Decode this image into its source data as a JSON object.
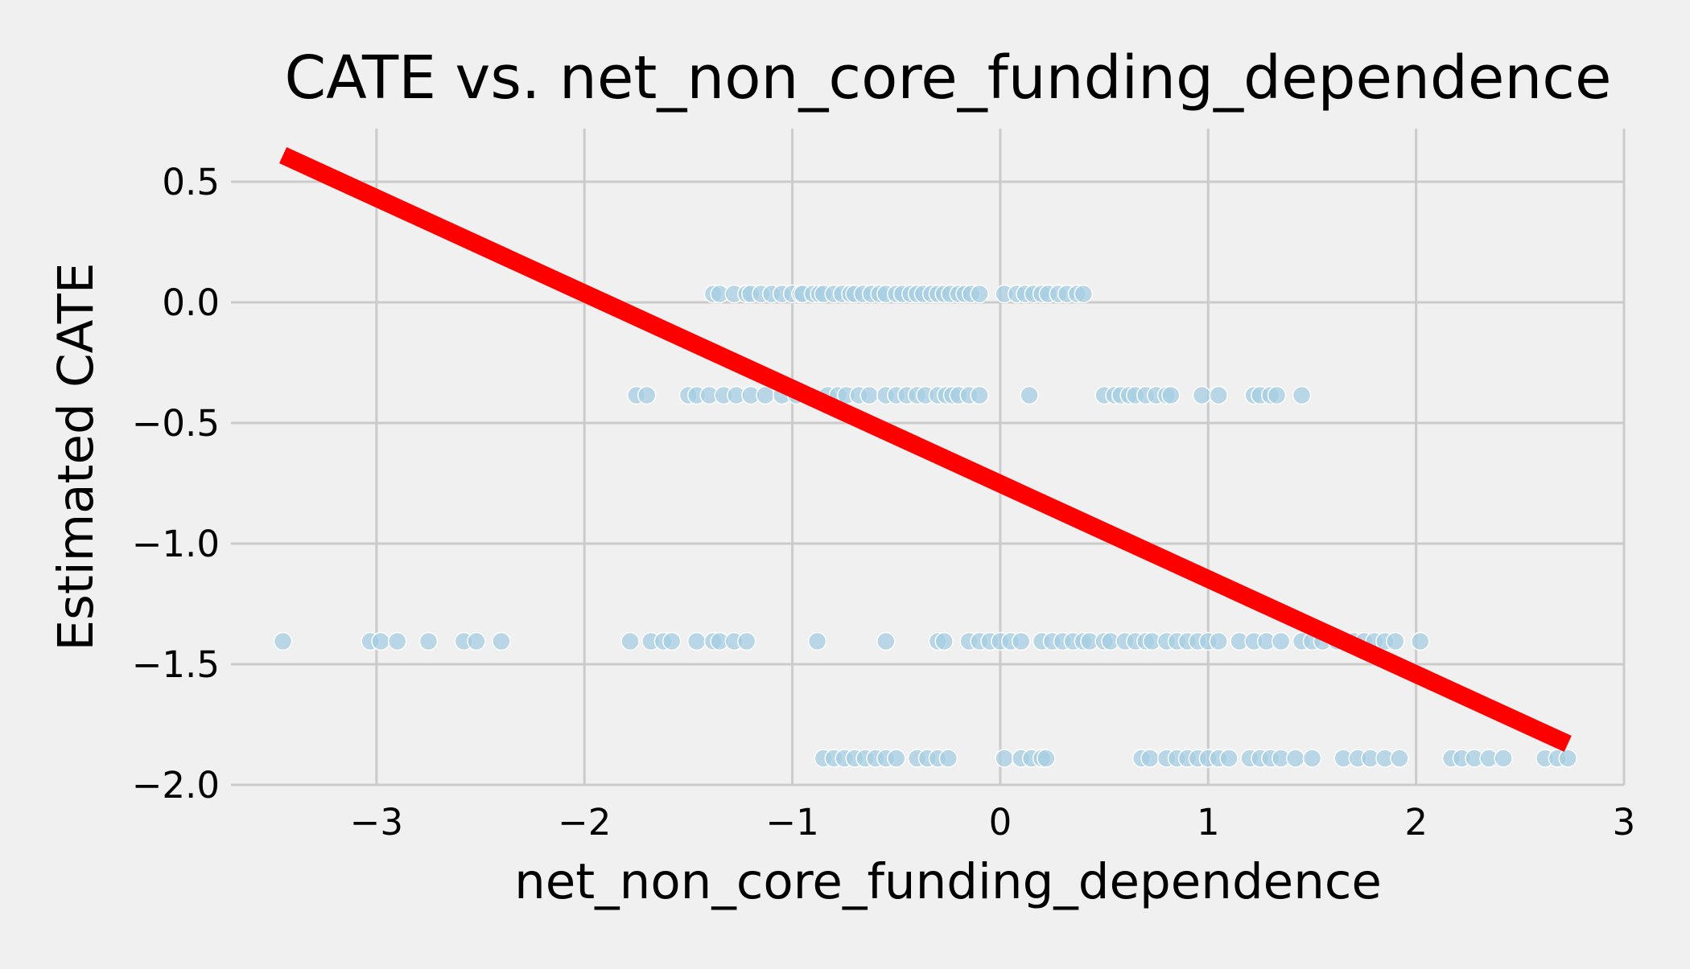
{
  "chart_data": {
    "type": "scatter",
    "title": "CATE vs. net_non_core_funding_dependence",
    "xlabel": "net_non_core_funding_dependence",
    "ylabel": "Estimated CATE",
    "xlim": [
      -3.7,
      3.0
    ],
    "ylim": [
      -2.0,
      0.72
    ],
    "xticks": [
      -3,
      -2,
      -1,
      0,
      1,
      2,
      3
    ],
    "xtick_labels": [
      "−3",
      "−2",
      "−1",
      "0",
      "1",
      "2",
      "3"
    ],
    "yticks": [
      0.5,
      0.0,
      -0.5,
      -1.0,
      -1.5,
      -2.0
    ],
    "ytick_labels": [
      "0.5",
      "0.0",
      "−0.5",
      "−1.0",
      "−1.5",
      "−2.0"
    ],
    "grid": true,
    "colors": {
      "background": "#f0f0f0",
      "grid": "#cbcbcb",
      "points": "#a6cee3",
      "line": "#ff0000"
    },
    "series": [
      {
        "kind": "scatter",
        "x": [
          -1.38,
          -1.35,
          -1.28,
          -1.22,
          -1.2,
          -1.15,
          -1.1,
          -1.05,
          -1.0,
          -0.96,
          -0.95,
          -0.9,
          -0.87,
          -0.85,
          -0.8,
          -0.76,
          -0.72,
          -0.7,
          -0.66,
          -0.62,
          -0.58,
          -0.55,
          -0.5,
          -0.47,
          -0.43,
          -0.4,
          -0.37,
          -0.33,
          -0.3,
          -0.27,
          -0.24,
          -0.2,
          -0.17,
          -0.14,
          -0.1,
          0.02,
          0.08,
          0.12,
          0.16,
          0.2,
          0.23,
          0.28,
          0.32,
          0.37,
          0.4,
          -1.75,
          -1.7,
          -1.5,
          -1.46,
          -1.4,
          -1.33,
          -1.27,
          -1.2,
          -1.13,
          -1.05,
          -0.98,
          -0.93,
          -0.83,
          -0.78,
          -0.74,
          -0.68,
          -0.63,
          -0.55,
          -0.5,
          -0.45,
          -0.4,
          -0.36,
          -0.3,
          -0.26,
          -0.23,
          -0.2,
          -0.15,
          -0.1,
          0.14,
          0.5,
          0.55,
          0.58,
          0.62,
          0.65,
          0.7,
          0.75,
          0.8,
          0.82,
          0.97,
          1.05,
          1.22,
          1.25,
          1.3,
          1.33,
          1.45,
          -3.45,
          -3.03,
          -2.98,
          -2.9,
          -2.75,
          -2.58,
          -2.52,
          -2.4,
          -1.78,
          -1.68,
          -1.62,
          -1.58,
          -1.46,
          -1.38,
          -1.35,
          -1.28,
          -1.22,
          -0.88,
          -0.55,
          -0.3,
          -0.27,
          -0.15,
          -0.1,
          -0.05,
          0.0,
          0.05,
          0.1,
          0.2,
          0.25,
          0.3,
          0.35,
          0.4,
          0.43,
          0.5,
          0.53,
          0.6,
          0.65,
          0.7,
          0.73,
          0.8,
          0.85,
          0.9,
          0.95,
          1.0,
          1.05,
          1.15,
          1.22,
          1.28,
          1.35,
          1.45,
          1.5,
          1.55,
          1.62,
          1.7,
          1.75,
          1.8,
          1.85,
          1.9,
          2.02,
          -0.85,
          -0.8,
          -0.75,
          -0.7,
          -0.65,
          -0.6,
          -0.55,
          -0.5,
          -0.4,
          -0.35,
          -0.3,
          -0.25,
          0.02,
          0.1,
          0.15,
          0.2,
          0.22,
          0.68,
          0.72,
          0.8,
          0.85,
          0.9,
          0.95,
          1.0,
          1.05,
          1.1,
          1.2,
          1.25,
          1.3,
          1.35,
          1.42,
          1.5,
          1.65,
          1.72,
          1.78,
          1.85,
          1.92,
          2.17,
          2.22,
          2.28,
          2.35,
          2.42,
          2.62,
          2.68,
          2.73
        ],
        "y": [
          0.035,
          0.035,
          0.035,
          0.035,
          0.035,
          0.035,
          0.035,
          0.035,
          0.035,
          0.035,
          0.035,
          0.035,
          0.035,
          0.035,
          0.035,
          0.035,
          0.035,
          0.035,
          0.035,
          0.035,
          0.035,
          0.035,
          0.035,
          0.035,
          0.035,
          0.035,
          0.035,
          0.035,
          0.035,
          0.035,
          0.035,
          0.035,
          0.035,
          0.035,
          0.035,
          0.035,
          0.035,
          0.035,
          0.035,
          0.035,
          0.035,
          0.035,
          0.035,
          0.035,
          0.035,
          -0.385,
          -0.385,
          -0.385,
          -0.385,
          -0.385,
          -0.385,
          -0.385,
          -0.385,
          -0.385,
          -0.385,
          -0.385,
          -0.385,
          -0.385,
          -0.385,
          -0.385,
          -0.385,
          -0.385,
          -0.385,
          -0.385,
          -0.385,
          -0.385,
          -0.385,
          -0.385,
          -0.385,
          -0.385,
          -0.385,
          -0.385,
          -0.385,
          -0.385,
          -0.385,
          -0.385,
          -0.385,
          -0.385,
          -0.385,
          -0.385,
          -0.385,
          -0.385,
          -0.385,
          -0.385,
          -0.385,
          -0.385,
          -0.385,
          -0.385,
          -0.385,
          -0.385,
          -1.405,
          -1.405,
          -1.405,
          -1.405,
          -1.405,
          -1.405,
          -1.405,
          -1.405,
          -1.405,
          -1.405,
          -1.405,
          -1.405,
          -1.405,
          -1.405,
          -1.405,
          -1.405,
          -1.405,
          -1.405,
          -1.405,
          -1.405,
          -1.405,
          -1.405,
          -1.405,
          -1.405,
          -1.405,
          -1.405,
          -1.405,
          -1.405,
          -1.405,
          -1.405,
          -1.405,
          -1.405,
          -1.405,
          -1.405,
          -1.405,
          -1.405,
          -1.405,
          -1.405,
          -1.405,
          -1.405,
          -1.405,
          -1.405,
          -1.405,
          -1.405,
          -1.405,
          -1.405,
          -1.405,
          -1.405,
          -1.405,
          -1.405,
          -1.405,
          -1.405,
          -1.405,
          -1.405,
          -1.405,
          -1.405,
          -1.405,
          -1.405,
          -1.405,
          -1.89,
          -1.89,
          -1.89,
          -1.89,
          -1.89,
          -1.89,
          -1.89,
          -1.89,
          -1.89,
          -1.89,
          -1.89,
          -1.89,
          -1.89,
          -1.89,
          -1.89,
          -1.89,
          -1.89,
          -1.89,
          -1.89,
          -1.89,
          -1.89,
          -1.89,
          -1.89,
          -1.89,
          -1.89,
          -1.89,
          -1.89,
          -1.89,
          -1.89,
          -1.89,
          -1.89,
          -1.89,
          -1.89,
          -1.89,
          -1.89,
          -1.89,
          -1.89,
          -1.89,
          -1.89,
          -1.89,
          -1.89,
          -1.89,
          -1.89,
          -1.89,
          -1.89
        ]
      },
      {
        "kind": "line",
        "x": [
          -3.45,
          2.73
        ],
        "y": [
          0.61,
          -1.83
        ]
      }
    ]
  }
}
